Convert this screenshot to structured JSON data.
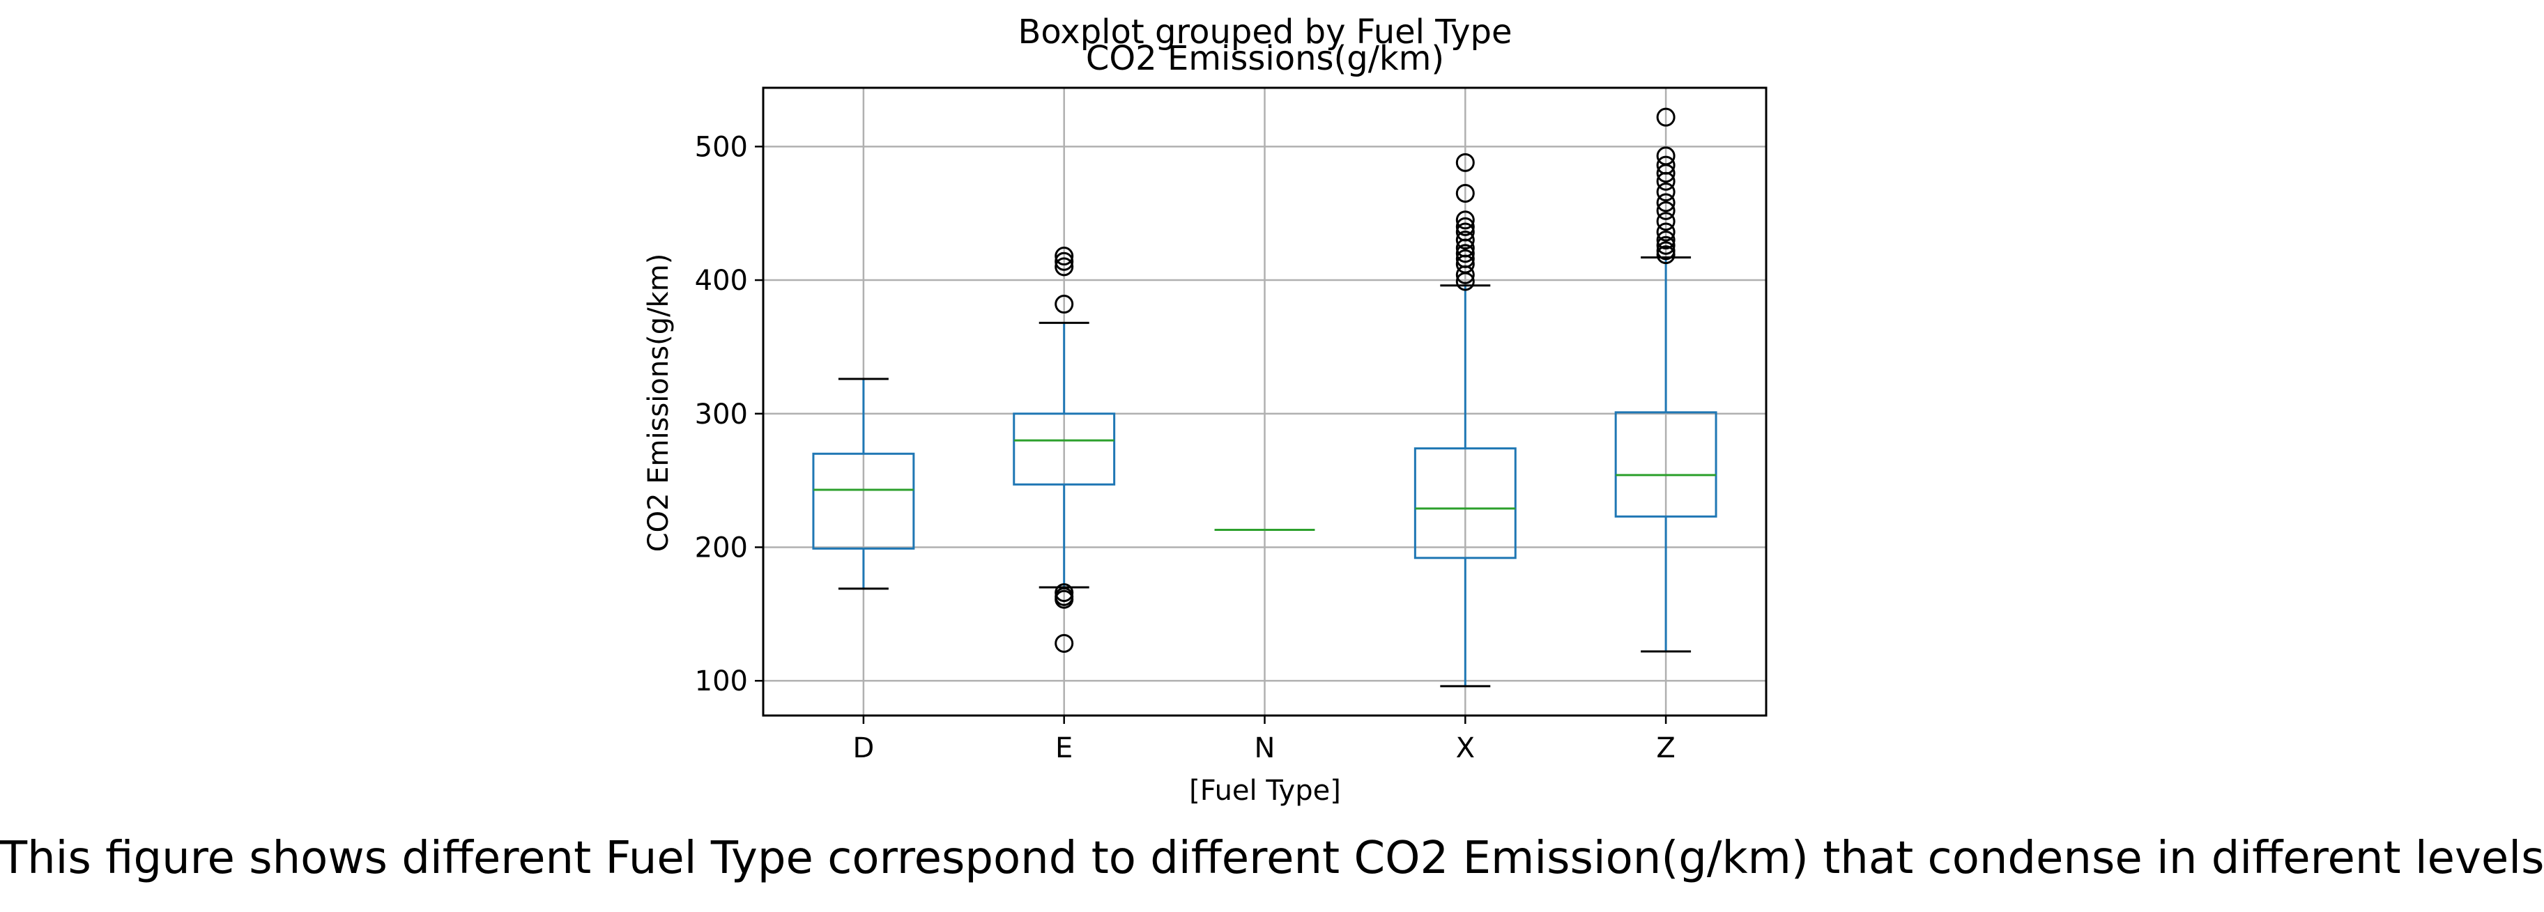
{
  "caption": "This figure shows different Fuel Type correspond to different CO2 Emission(g/km) that condense in different levels",
  "colors": {
    "box": "#1f77b4",
    "median": "#2ca02c",
    "whisker_cap": "#000000",
    "flier": "#000000",
    "grid": "#b0b0b0",
    "axes": "#000000"
  },
  "chart_data": {
    "type": "boxplot",
    "suptitle": "Boxplot grouped by Fuel Type",
    "title": "CO2 Emissions(g/km)",
    "xlabel": "[Fuel Type]",
    "ylabel": "CO2 Emissions(g/km)",
    "ylim": [
      74,
      544
    ],
    "yticks": [
      100,
      200,
      300,
      400,
      500
    ],
    "grid": true,
    "categories": [
      "D",
      "E",
      "N",
      "X",
      "Z"
    ],
    "boxes": [
      {
        "category": "D",
        "whisker_low": 169,
        "q1": 199,
        "median": 243,
        "q3": 270,
        "whisker_high": 326,
        "fliers": []
      },
      {
        "category": "E",
        "whisker_low": 170,
        "q1": 247,
        "median": 280,
        "q3": 300,
        "whisker_high": 368,
        "fliers": [
          128,
          161,
          163,
          166,
          382,
          410,
          414,
          418
        ]
      },
      {
        "category": "N",
        "whisker_low": 213,
        "q1": 213,
        "median": 213,
        "q3": 213,
        "whisker_high": 213,
        "fliers": []
      },
      {
        "category": "X",
        "whisker_low": 96,
        "q1": 192,
        "median": 229,
        "q3": 274,
        "whisker_high": 396,
        "fliers": [
          399,
          404,
          412,
          416,
          420,
          424,
          430,
          436,
          440,
          445,
          465,
          488
        ]
      },
      {
        "category": "Z",
        "whisker_low": 122,
        "q1": 223,
        "median": 254,
        "q3": 301,
        "whisker_high": 417,
        "fliers": [
          419,
          422,
          426,
          430,
          436,
          444,
          452,
          458,
          466,
          474,
          480,
          486,
          493,
          522
        ]
      }
    ]
  }
}
